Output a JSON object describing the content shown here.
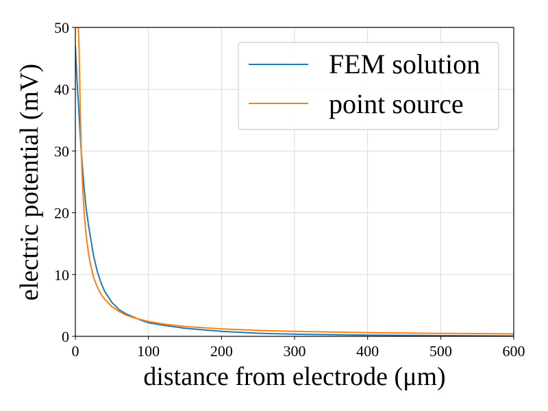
{
  "chart_data": {
    "type": "line",
    "title": "",
    "xlabel": "distance from electrode (μm)",
    "ylabel": "electric potential (mV)",
    "xlim": [
      0,
      600
    ],
    "ylim": [
      0,
      50
    ],
    "xticks": [
      0,
      100,
      200,
      300,
      400,
      500,
      600
    ],
    "yticks": [
      0,
      10,
      20,
      30,
      40,
      50
    ],
    "grid": true,
    "legend_position": "top-right",
    "series": [
      {
        "name": "FEM solution",
        "color": "#1f77b4",
        "x": [
          0,
          2,
          5,
          8,
          10,
          12,
          15,
          18,
          20,
          25,
          30,
          35,
          40,
          50,
          60,
          70,
          80,
          90,
          100,
          120,
          150,
          200,
          250,
          300,
          400,
          500,
          600
        ],
        "y": [
          47,
          42,
          36,
          30,
          27,
          24,
          20.5,
          18,
          16.5,
          13,
          10.5,
          8.7,
          7.3,
          5.5,
          4.3,
          3.6,
          3.1,
          2.6,
          2.2,
          1.8,
          1.3,
          0.8,
          0.5,
          0.35,
          0.2,
          0.12,
          0.05
        ]
      },
      {
        "name": "point source",
        "color": "#ff7f0e",
        "x": [
          4,
          5,
          6,
          7,
          8,
          10,
          12,
          15,
          18,
          20,
          25,
          30,
          35,
          40,
          50,
          60,
          70,
          80,
          90,
          100,
          120,
          150,
          200,
          250,
          300,
          400,
          500,
          600
        ],
        "y": [
          50,
          47,
          41,
          35,
          30,
          24,
          20,
          16,
          13.5,
          12,
          9.5,
          8,
          6.8,
          6,
          4.8,
          4,
          3.4,
          3,
          2.7,
          2.4,
          2.0,
          1.6,
          1.2,
          0.95,
          0.8,
          0.6,
          0.48,
          0.4
        ]
      }
    ]
  }
}
